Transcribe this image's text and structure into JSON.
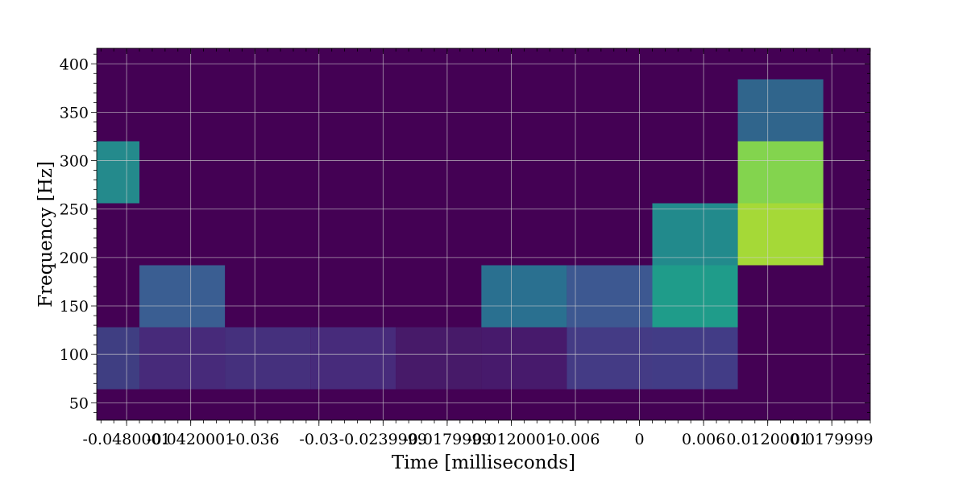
{
  "chart_data": {
    "type": "heatmap",
    "title": "",
    "xlabel": "Time [milliseconds]",
    "ylabel": "Frequency [Hz]",
    "xlim": [
      -0.0508,
      0.0216
    ],
    "ylim": [
      32,
      416
    ],
    "x_ticks": [
      {
        "value": -0.048,
        "label": "-0.0480001"
      },
      {
        "value": -0.042,
        "label": "-0.0420001"
      },
      {
        "value": -0.036,
        "label": "-0.036"
      },
      {
        "value": -0.03,
        "label": "-0.03"
      },
      {
        "value": -0.024,
        "label": "-0.0239999"
      },
      {
        "value": -0.018,
        "label": "-0.0179999"
      },
      {
        "value": -0.012,
        "label": "-0.0120001"
      },
      {
        "value": -0.006,
        "label": "-0.006"
      },
      {
        "value": 0.0,
        "label": "0"
      },
      {
        "value": 0.006,
        "label": "0.006"
      },
      {
        "value": 0.012,
        "label": "0.0120001"
      },
      {
        "value": 0.018,
        "label": "0.0179999"
      }
    ],
    "y_ticks": [
      {
        "value": 50,
        "label": "50"
      },
      {
        "value": 100,
        "label": "100"
      },
      {
        "value": 150,
        "label": "150"
      },
      {
        "value": 200,
        "label": "200"
      },
      {
        "value": 250,
        "label": "250"
      },
      {
        "value": 300,
        "label": "300"
      },
      {
        "value": 350,
        "label": "350"
      },
      {
        "value": 400,
        "label": "400"
      }
    ],
    "grid": true,
    "background_color": "#440154",
    "tiles": [
      {
        "x0": -0.0508,
        "x1": -0.0468,
        "y0": 64,
        "y1": 128,
        "color": "#3f3e82"
      },
      {
        "x0": -0.0468,
        "x1": -0.0388,
        "y0": 64,
        "y1": 128,
        "color": "#472a7a"
      },
      {
        "x0": -0.0388,
        "x1": -0.0308,
        "y0": 64,
        "y1": 128,
        "color": "#45307d"
      },
      {
        "x0": -0.0308,
        "x1": -0.0228,
        "y0": 64,
        "y1": 128,
        "color": "#472b7b"
      },
      {
        "x0": -0.0228,
        "x1": -0.0148,
        "y0": 64,
        "y1": 128,
        "color": "#471a69"
      },
      {
        "x0": -0.0148,
        "x1": -0.0068,
        "y0": 64,
        "y1": 128,
        "color": "#471a6c"
      },
      {
        "x0": -0.0068,
        "x1": 0.0012,
        "y0": 64,
        "y1": 128,
        "color": "#443b85"
      },
      {
        "x0": 0.0012,
        "x1": 0.0092,
        "y0": 64,
        "y1": 128,
        "color": "#423c86"
      },
      {
        "x0": -0.0468,
        "x1": -0.0388,
        "y0": 128,
        "y1": 192,
        "color": "#3a5e92"
      },
      {
        "x0": -0.0148,
        "x1": -0.0068,
        "y0": 128,
        "y1": 192,
        "color": "#2a7090"
      },
      {
        "x0": -0.0068,
        "x1": 0.0012,
        "y0": 128,
        "y1": 192,
        "color": "#3d5891"
      },
      {
        "x0": 0.0012,
        "x1": 0.0092,
        "y0": 128,
        "y1": 192,
        "color": "#1f9c8a"
      },
      {
        "x0": 0.0012,
        "x1": 0.0092,
        "y0": 192,
        "y1": 256,
        "color": "#228a8c"
      },
      {
        "x0": 0.0092,
        "x1": 0.0172,
        "y0": 192,
        "y1": 256,
        "color": "#a5d937"
      },
      {
        "x0": 0.0092,
        "x1": 0.0172,
        "y0": 256,
        "y1": 320,
        "color": "#83d44e"
      },
      {
        "x0": 0.0092,
        "x1": 0.0172,
        "y0": 320,
        "y1": 384,
        "color": "#30658c"
      },
      {
        "x0": -0.0508,
        "x1": -0.0468,
        "y0": 256,
        "y1": 320,
        "color": "#248a8c"
      }
    ]
  }
}
